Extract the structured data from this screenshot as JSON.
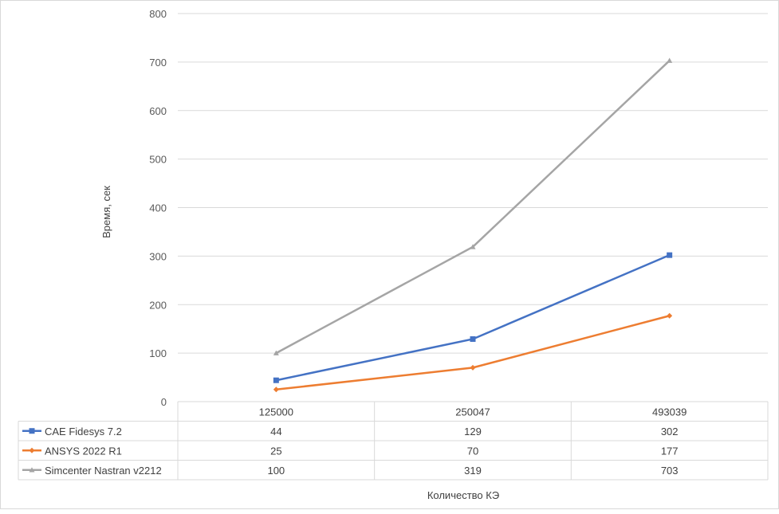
{
  "chart_data": {
    "type": "line",
    "title": "",
    "xlabel": "Количество КЭ",
    "ylabel": "Время, сек",
    "ylim": [
      0,
      800
    ],
    "yticks": [
      0,
      100,
      200,
      300,
      400,
      500,
      600,
      700,
      800
    ],
    "grid": true,
    "legend": "data-table-left",
    "categories": [
      "125000",
      "250047",
      "493039"
    ],
    "series": [
      {
        "name": "CAE Fidesys 7.2",
        "values": [
          44,
          129,
          302
        ],
        "color": "#4472c4",
        "marker": "square"
      },
      {
        "name": "ANSYS 2022 R1",
        "values": [
          25,
          70,
          177
        ],
        "color": "#ed7d31",
        "marker": "diamond"
      },
      {
        "name": "Simcenter Nastran v2212",
        "values": [
          100,
          319,
          703
        ],
        "color": "#a5a5a5",
        "marker": "triangle"
      }
    ]
  }
}
